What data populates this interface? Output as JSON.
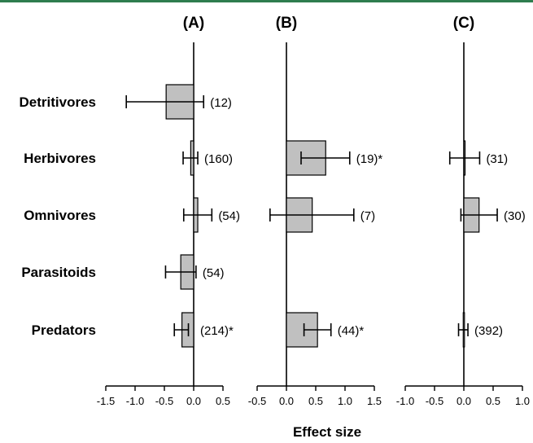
{
  "colors": {
    "top_rule": "#2e7d4f",
    "bar_fill": "#c0c0c0",
    "stroke": "#000000"
  },
  "chart_data": {
    "type": "bar",
    "orientation": "horizontal",
    "xlabel": "Effect size",
    "categories": [
      "Detritivores",
      "Herbivores",
      "Omnivores",
      "Parasitoids",
      "Predators"
    ],
    "panels": [
      {
        "title": "(A)",
        "xlim": [
          -1.5,
          0.5
        ],
        "xticks": [
          "-1.5",
          "-1.0",
          "-0.5",
          "0.0",
          "0.5"
        ],
        "values": [
          -0.47,
          -0.05,
          0.07,
          -0.22,
          -0.2
        ],
        "ci_low": [
          -1.15,
          -0.18,
          -0.17,
          -0.48,
          -0.33
        ],
        "ci_high": [
          0.17,
          0.07,
          0.31,
          0.04,
          -0.09
        ],
        "labels": [
          "(12)",
          "(160)",
          "(54)",
          "(54)",
          "(214)*"
        ]
      },
      {
        "title": "(B)",
        "xlim": [
          -0.5,
          1.5
        ],
        "xticks": [
          "-0.5",
          "0.0",
          "0.5",
          "1.0",
          "1.5"
        ],
        "values": [
          null,
          0.67,
          0.44,
          null,
          0.53
        ],
        "ci_low": [
          null,
          0.25,
          -0.28,
          null,
          0.3
        ],
        "ci_high": [
          null,
          1.08,
          1.15,
          null,
          0.76
        ],
        "labels": [
          null,
          "(19)*",
          "(7)",
          null,
          "(44)*"
        ]
      },
      {
        "title": "(C)",
        "xlim": [
          -1.0,
          1.0
        ],
        "xticks": [
          "-1.0",
          "-0.5",
          "0.0",
          "0.5",
          "1.0"
        ],
        "values": [
          null,
          0.01,
          0.26,
          null,
          -0.01
        ],
        "ci_low": [
          null,
          -0.24,
          -0.05,
          null,
          -0.09
        ],
        "ci_high": [
          null,
          0.27,
          0.57,
          null,
          0.07
        ],
        "labels": [
          null,
          "(31)",
          "(30)",
          null,
          "(392)"
        ]
      }
    ]
  }
}
